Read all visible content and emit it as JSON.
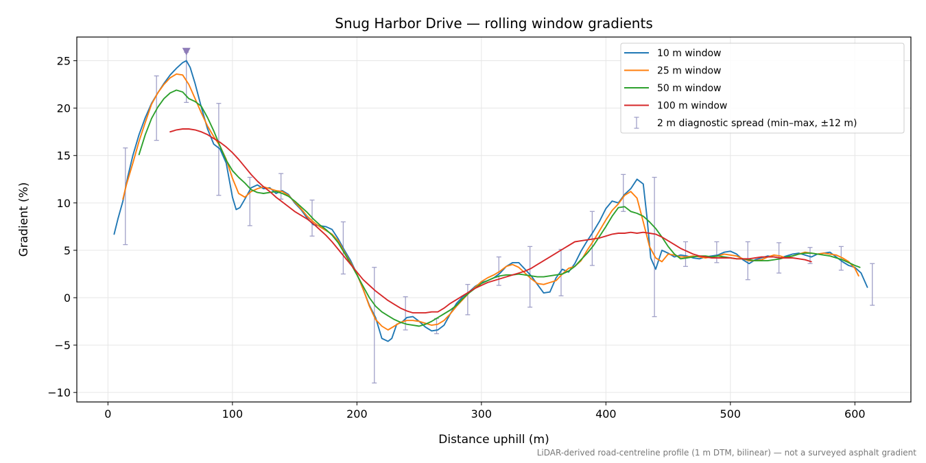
{
  "chart_data": {
    "type": "line",
    "title": "Snug Harbor Drive — rolling window gradients",
    "xlabel": "Distance uphill (m)",
    "ylabel": "Gradient (%)",
    "footnote": "LiDAR-derived road-centreline profile (1 m DTM, bilinear) — not a surveyed asphalt gradient",
    "xlim": [
      -25,
      645
    ],
    "ylim": [
      -11,
      27.5
    ],
    "xticks": [
      0,
      100,
      200,
      300,
      400,
      500,
      600
    ],
    "yticks": [
      -10,
      -5,
      0,
      5,
      10,
      15,
      20,
      25
    ],
    "grid": true,
    "legend_position": "top-right",
    "series": [
      {
        "name": "10 m window",
        "color": "#1f77b4",
        "x": [
          5,
          8,
          12,
          16,
          20,
          25,
          30,
          35,
          40,
          45,
          50,
          55,
          60,
          63,
          66,
          70,
          75,
          80,
          85,
          90,
          95,
          100,
          103,
          106,
          110,
          115,
          120,
          125,
          130,
          135,
          140,
          145,
          150,
          155,
          160,
          165,
          170,
          175,
          180,
          185,
          190,
          195,
          200,
          205,
          210,
          215,
          220,
          225,
          228,
          232,
          236,
          240,
          245,
          250,
          255,
          260,
          265,
          270,
          275,
          280,
          285,
          290,
          295,
          300,
          305,
          310,
          315,
          320,
          325,
          330,
          335,
          340,
          345,
          350,
          355,
          360,
          365,
          370,
          375,
          380,
          385,
          390,
          395,
          400,
          405,
          410,
          415,
          420,
          425,
          430,
          433,
          436,
          440,
          445,
          450,
          455,
          460,
          465,
          470,
          475,
          480,
          485,
          490,
          495,
          500,
          505,
          510,
          515,
          520,
          525,
          530,
          535,
          540,
          545,
          550,
          555,
          560,
          565,
          570,
          575,
          580,
          585,
          590,
          595,
          600,
          605,
          610
        ],
        "y": [
          6.7,
          8.3,
          10.2,
          12.8,
          15.0,
          17.2,
          19.0,
          20.5,
          21.6,
          22.6,
          23.5,
          24.2,
          24.8,
          25.0,
          24.3,
          22.6,
          20.1,
          17.8,
          16.2,
          15.7,
          14.2,
          10.6,
          9.3,
          9.5,
          10.4,
          11.6,
          11.9,
          11.5,
          11.6,
          11.0,
          11.3,
          10.9,
          10.0,
          9.3,
          8.4,
          7.7,
          7.6,
          7.5,
          7.2,
          6.2,
          5.0,
          3.9,
          2.5,
          0.9,
          -0.8,
          -2.1,
          -4.3,
          -4.6,
          -4.3,
          -2.8,
          -2.6,
          -2.1,
          -2.0,
          -2.5,
          -3.1,
          -3.5,
          -3.4,
          -2.9,
          -1.7,
          -0.6,
          0.1,
          0.6,
          1.2,
          1.6,
          1.8,
          2.1,
          2.6,
          3.3,
          3.7,
          3.7,
          3.0,
          2.3,
          1.4,
          0.5,
          0.6,
          2.1,
          3.0,
          2.7,
          3.6,
          4.9,
          6.0,
          7.0,
          8.1,
          9.4,
          10.2,
          10.0,
          10.9,
          11.5,
          12.5,
          12.0,
          8.5,
          4.2,
          3.0,
          5.0,
          4.7,
          4.3,
          4.5,
          4.4,
          4.2,
          4.1,
          4.3,
          4.4,
          4.5,
          4.8,
          4.9,
          4.6,
          4.0,
          3.6,
          4.0,
          4.2,
          4.4,
          4.3,
          4.2,
          4.4,
          4.6,
          4.7,
          4.5,
          4.3,
          4.6,
          4.7,
          4.8,
          4.3,
          3.8,
          3.4,
          3.2,
          2.6,
          1.1
        ]
      },
      {
        "name": "25 m window",
        "color": "#ff7f0e",
        "x": [
          12,
          15,
          20,
          25,
          30,
          35,
          40,
          45,
          50,
          55,
          60,
          65,
          70,
          75,
          80,
          85,
          90,
          95,
          100,
          105,
          110,
          115,
          120,
          125,
          130,
          135,
          140,
          145,
          150,
          155,
          160,
          165,
          170,
          175,
          180,
          185,
          190,
          195,
          200,
          205,
          210,
          215,
          220,
          225,
          230,
          235,
          240,
          245,
          250,
          255,
          260,
          265,
          270,
          275,
          280,
          285,
          290,
          295,
          300,
          305,
          310,
          315,
          320,
          325,
          330,
          335,
          340,
          345,
          350,
          355,
          360,
          365,
          370,
          375,
          380,
          385,
          390,
          395,
          400,
          405,
          410,
          415,
          420,
          425,
          430,
          435,
          440,
          445,
          450,
          455,
          460,
          465,
          470,
          475,
          480,
          485,
          490,
          495,
          500,
          505,
          510,
          515,
          520,
          525,
          530,
          535,
          540,
          545,
          550,
          555,
          560,
          565,
          570,
          575,
          580,
          585,
          590,
          595,
          600,
          603
        ],
        "y": [
          10.4,
          12.0,
          14.2,
          16.5,
          18.5,
          20.4,
          21.6,
          22.5,
          23.2,
          23.6,
          23.5,
          22.5,
          21.0,
          19.5,
          18.1,
          17.0,
          16.0,
          14.6,
          12.6,
          11.0,
          10.6,
          11.2,
          11.5,
          11.7,
          11.5,
          11.3,
          11.2,
          10.8,
          10.1,
          9.4,
          8.6,
          8.0,
          7.5,
          7.1,
          6.7,
          6.0,
          4.8,
          3.7,
          2.5,
          0.9,
          -0.9,
          -2.3,
          -3.0,
          -3.4,
          -3.0,
          -2.6,
          -2.4,
          -2.4,
          -2.5,
          -2.7,
          -2.9,
          -2.8,
          -2.4,
          -1.7,
          -0.9,
          -0.2,
          0.5,
          1.1,
          1.7,
          2.1,
          2.4,
          2.8,
          3.3,
          3.5,
          3.2,
          2.6,
          2.0,
          1.5,
          1.4,
          1.6,
          1.8,
          2.5,
          3.1,
          3.3,
          3.9,
          5.0,
          6.0,
          7.1,
          8.2,
          9.2,
          9.9,
          10.8,
          11.2,
          10.5,
          8.0,
          5.4,
          4.2,
          3.8,
          4.6,
          4.5,
          4.3,
          4.3,
          4.4,
          4.3,
          4.2,
          4.3,
          4.4,
          4.6,
          4.5,
          4.4,
          4.1,
          3.9,
          3.9,
          4.0,
          4.3,
          4.5,
          4.4,
          4.2,
          4.4,
          4.6,
          4.8,
          4.7,
          4.6,
          4.7,
          4.6,
          4.5,
          4.2,
          3.8,
          3.1,
          2.3
        ]
      },
      {
        "name": "50 m window",
        "color": "#2ca02c",
        "x": [
          25,
          30,
          35,
          40,
          45,
          50,
          55,
          60,
          65,
          70,
          75,
          80,
          85,
          90,
          95,
          100,
          105,
          110,
          115,
          120,
          125,
          130,
          135,
          140,
          145,
          150,
          155,
          160,
          165,
          170,
          175,
          180,
          185,
          190,
          195,
          200,
          205,
          210,
          215,
          220,
          225,
          230,
          235,
          240,
          245,
          250,
          255,
          260,
          265,
          270,
          275,
          280,
          285,
          290,
          295,
          300,
          305,
          310,
          315,
          320,
          325,
          330,
          335,
          340,
          345,
          350,
          355,
          360,
          365,
          370,
          375,
          380,
          385,
          390,
          395,
          400,
          405,
          410,
          415,
          420,
          425,
          430,
          435,
          440,
          445,
          450,
          455,
          460,
          465,
          470,
          475,
          480,
          485,
          490,
          495,
          500,
          505,
          510,
          515,
          520,
          525,
          530,
          535,
          540,
          545,
          550,
          555,
          560,
          565,
          570,
          575,
          580,
          585,
          590,
          595,
          600,
          604
        ],
        "y": [
          15.1,
          17.2,
          18.9,
          20.1,
          21.0,
          21.6,
          21.9,
          21.7,
          21.0,
          20.7,
          20.2,
          19.0,
          17.6,
          16.0,
          14.5,
          13.4,
          12.7,
          12.1,
          11.4,
          11.1,
          11.0,
          11.1,
          11.2,
          11.0,
          10.7,
          10.2,
          9.6,
          9.0,
          8.3,
          7.7,
          7.2,
          6.6,
          5.8,
          4.7,
          3.6,
          2.4,
          1.2,
          0.0,
          -0.9,
          -1.5,
          -1.9,
          -2.3,
          -2.6,
          -2.8,
          -2.9,
          -3.0,
          -2.8,
          -2.5,
          -2.1,
          -1.7,
          -1.3,
          -0.8,
          -0.1,
          0.5,
          1.0,
          1.5,
          1.8,
          2.1,
          2.3,
          2.4,
          2.4,
          2.5,
          2.4,
          2.3,
          2.2,
          2.2,
          2.3,
          2.4,
          2.5,
          2.8,
          3.3,
          4.0,
          4.7,
          5.5,
          6.5,
          7.5,
          8.6,
          9.5,
          9.6,
          9.1,
          8.9,
          8.6,
          8.0,
          7.3,
          6.4,
          5.4,
          4.6,
          4.1,
          4.2,
          4.3,
          4.4,
          4.4,
          4.3,
          4.4,
          4.3,
          4.2,
          4.1,
          4.1,
          4.0,
          3.9,
          3.9,
          3.9,
          4.0,
          4.1,
          4.3,
          4.4,
          4.6,
          4.7,
          4.7,
          4.6,
          4.5,
          4.4,
          4.2,
          4.0,
          3.7,
          3.4,
          3.2
        ]
      },
      {
        "name": "100 m window",
        "color": "#d62728",
        "x": [
          50,
          55,
          60,
          65,
          70,
          75,
          80,
          85,
          90,
          95,
          100,
          105,
          110,
          115,
          120,
          125,
          130,
          135,
          140,
          145,
          150,
          155,
          160,
          165,
          170,
          175,
          180,
          185,
          190,
          195,
          200,
          205,
          210,
          215,
          220,
          225,
          230,
          235,
          240,
          245,
          250,
          255,
          260,
          265,
          270,
          275,
          280,
          285,
          290,
          295,
          300,
          305,
          310,
          315,
          320,
          325,
          330,
          335,
          340,
          345,
          350,
          355,
          360,
          365,
          370,
          375,
          380,
          385,
          390,
          395,
          400,
          405,
          410,
          415,
          420,
          425,
          430,
          435,
          440,
          445,
          450,
          455,
          460,
          465,
          470,
          475,
          480,
          485,
          490,
          495,
          500,
          505,
          510,
          515,
          520,
          525,
          530,
          535,
          540,
          545,
          550,
          555,
          560,
          565
        ],
        "y": [
          17.5,
          17.7,
          17.8,
          17.8,
          17.7,
          17.5,
          17.2,
          16.8,
          16.4,
          15.9,
          15.3,
          14.6,
          13.8,
          13.0,
          12.3,
          11.7,
          11.2,
          10.6,
          10.1,
          9.6,
          9.1,
          8.7,
          8.3,
          7.8,
          7.2,
          6.6,
          5.9,
          5.1,
          4.3,
          3.5,
          2.7,
          1.9,
          1.3,
          0.7,
          0.2,
          -0.3,
          -0.7,
          -1.1,
          -1.4,
          -1.6,
          -1.6,
          -1.6,
          -1.5,
          -1.5,
          -1.1,
          -0.6,
          -0.2,
          0.2,
          0.6,
          1.0,
          1.3,
          1.6,
          1.8,
          2.0,
          2.2,
          2.4,
          2.6,
          2.8,
          3.1,
          3.5,
          3.9,
          4.3,
          4.7,
          5.1,
          5.5,
          5.9,
          6.0,
          6.1,
          6.2,
          6.3,
          6.5,
          6.7,
          6.8,
          6.8,
          6.9,
          6.8,
          6.9,
          6.8,
          6.7,
          6.4,
          6.0,
          5.6,
          5.2,
          4.9,
          4.6,
          4.4,
          4.3,
          4.2,
          4.2,
          4.2,
          4.2,
          4.1,
          4.1,
          4.1,
          4.2,
          4.3,
          4.3,
          4.3,
          4.2,
          4.2,
          4.2,
          4.1,
          4.0,
          3.8
        ]
      }
    ],
    "errorbars": {
      "name": "2 m diagnostic spread (min–max, ±12 m)",
      "color": "#a0a0c8",
      "x": [
        14,
        39,
        63,
        89,
        114,
        139,
        164,
        189,
        214,
        239,
        264,
        289,
        314,
        339,
        364,
        389,
        414,
        439,
        464,
        489,
        514,
        539,
        564,
        589,
        614
      ],
      "low": [
        5.6,
        16.6,
        20.6,
        10.8,
        7.6,
        10.4,
        6.5,
        2.5,
        -9.0,
        -3.4,
        -3.8,
        -1.8,
        1.3,
        -1.0,
        0.2,
        3.4,
        9.1,
        -2.0,
        3.3,
        3.7,
        1.9,
        2.6,
        3.6,
        2.9,
        -0.8
      ],
      "high": [
        15.8,
        23.4,
        25.9,
        20.5,
        12.7,
        13.1,
        10.3,
        8.0,
        3.2,
        0.1,
        -2.2,
        1.4,
        4.3,
        5.4,
        5.1,
        9.1,
        13.0,
        12.7,
        5.9,
        5.9,
        5.9,
        5.8,
        5.3,
        5.4,
        3.6
      ]
    },
    "peak_marker": {
      "x": 63,
      "y": 26.0,
      "color": "#8e7cb8",
      "shape": "down-triangle"
    }
  }
}
